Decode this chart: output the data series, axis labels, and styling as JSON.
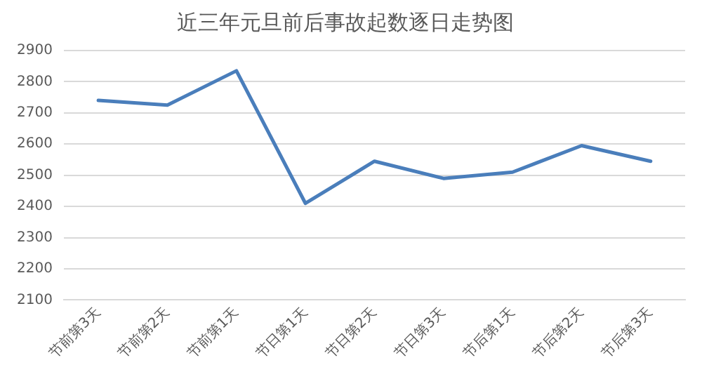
{
  "chart_data": {
    "type": "line",
    "title": "近三年元旦前后事故起数逐日走势图",
    "categories": [
      "节前第3天",
      "节前第2天",
      "节前第1天",
      "节日第1天",
      "节日第2天",
      "节日第3天",
      "节后第1天",
      "节后第2天",
      "节后第3天"
    ],
    "series": [
      {
        "color": "#4a7ebb",
        "values": [
          2740,
          2725,
          2835,
          2410,
          2545,
          2490,
          2510,
          2595,
          2545
        ]
      }
    ],
    "ylim": [
      2100,
      2900
    ],
    "yticks": [
      2100,
      2200,
      2300,
      2400,
      2500,
      2600,
      2700,
      2800,
      2900
    ],
    "grid": "y",
    "legend": false,
    "marker": "none"
  }
}
